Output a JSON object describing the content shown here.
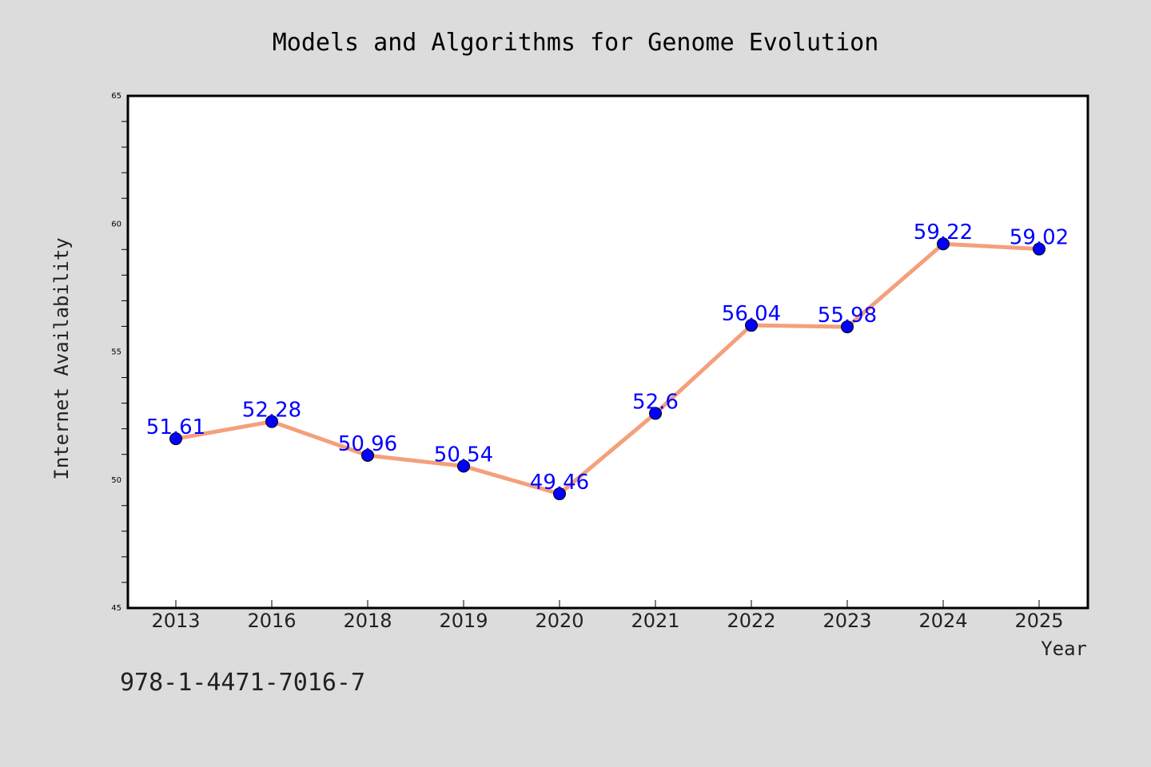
{
  "chart_data": {
    "type": "line",
    "title": "Models and Algorithms for Genome Evolution",
    "xlabel": "Year",
    "ylabel": "Internet Availability",
    "categories": [
      "2013",
      "2016",
      "2018",
      "2019",
      "2020",
      "2021",
      "2022",
      "2023",
      "2024",
      "2025"
    ],
    "series": [
      {
        "values": [
          51.61,
          52.28,
          50.96,
          50.54,
          49.46,
          52.6,
          56.04,
          55.98,
          59.22,
          59.02
        ],
        "labels": [
          "51.61",
          "52.28",
          "50.96",
          "50.54",
          "49.46",
          "52.6",
          "56.04",
          "55.98",
          "59.22",
          "59.02"
        ]
      }
    ],
    "ylim": [
      45,
      65
    ],
    "yticks": [
      "45",
      "50",
      "55",
      "60",
      "65"
    ],
    "grid": false,
    "legend": "none",
    "annotation": "978-1-4471-7016-7",
    "colors": {
      "line": "#f4a07c",
      "marker": "#0000ff",
      "label": "#0000ff",
      "background": "#dcdcdc",
      "plot_background": "#ffffff"
    }
  }
}
